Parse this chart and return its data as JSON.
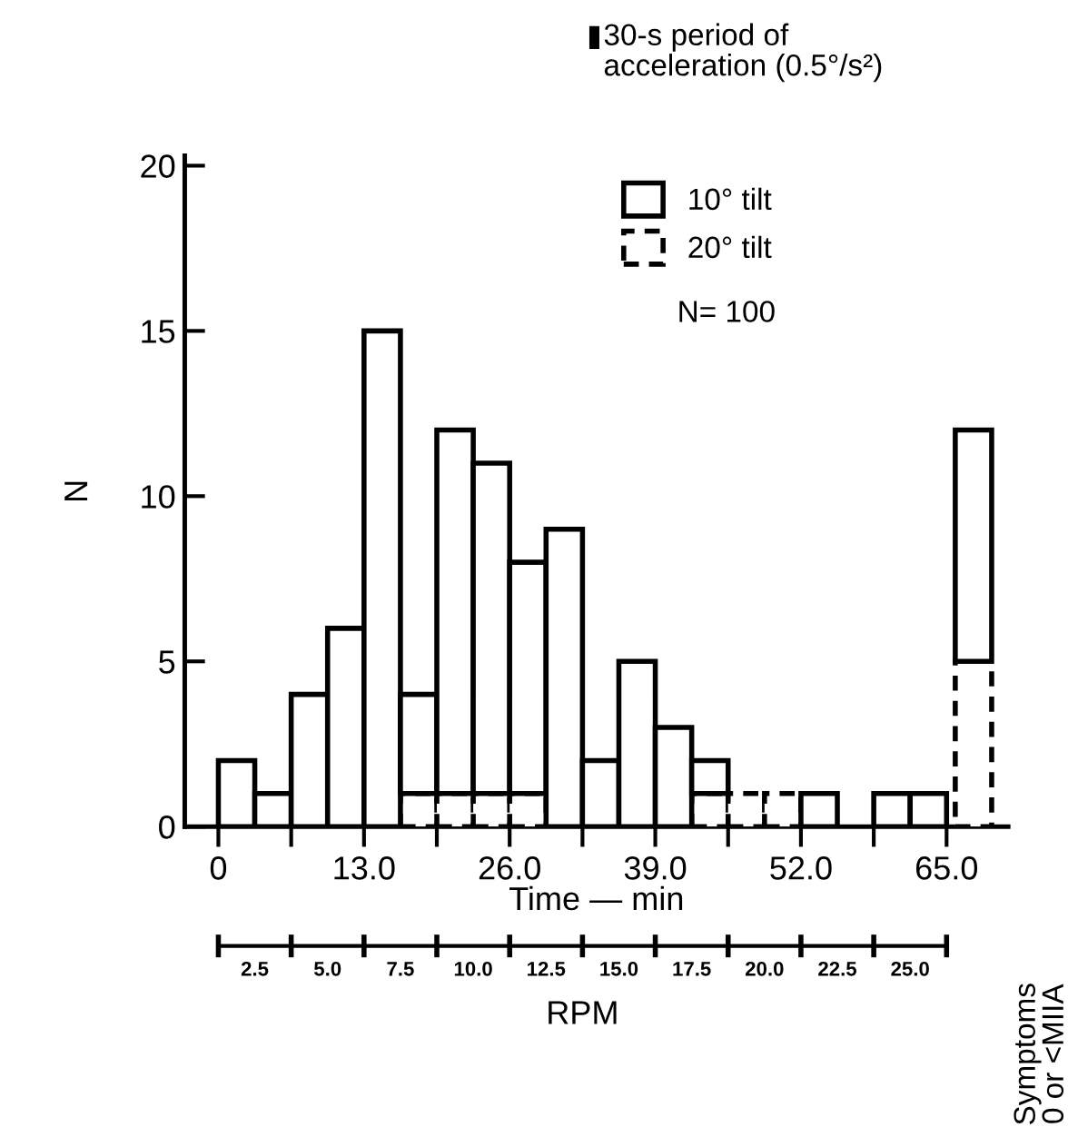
{
  "chart_data": {
    "type": "bar",
    "x": [
      1.625,
      4.875,
      8.125,
      11.375,
      14.625,
      17.875,
      21.125,
      24.375,
      27.625,
      30.875,
      34.125,
      37.375,
      40.625,
      43.875,
      47.125,
      50.375,
      53.625,
      56.875,
      60.125,
      63.375,
      67.4
    ],
    "series": [
      {
        "name": "20° tilt",
        "color": "#000000",
        "line_style": "dashed",
        "values": [
          0,
          0,
          0,
          0,
          0,
          1,
          1,
          1,
          1,
          0,
          0,
          0,
          0,
          1,
          1,
          1,
          0,
          0,
          0,
          0,
          5
        ]
      },
      {
        "name": "10° tilt",
        "color": "#000000",
        "line_style": "solid",
        "values": [
          2,
          1,
          4,
          6,
          15,
          3,
          11,
          10,
          7,
          9,
          2,
          5,
          3,
          1,
          0,
          0,
          1,
          0,
          1,
          1,
          7
        ]
      }
    ],
    "stacked": true,
    "xlabel": "Time — min",
    "ylabel": "N",
    "xlim": [
      -3,
      70.5
    ],
    "ylim": [
      0,
      20.3
    ],
    "xticks": [
      0,
      {
        "value": 6.5,
        "label": null
      },
      {
        "value": 13.0,
        "label": "13.0"
      },
      {
        "value": 19.5,
        "label": null
      },
      {
        "value": 26.0,
        "label": "26.0"
      },
      {
        "value": 32.5,
        "label": null
      },
      {
        "value": 39.0,
        "label": "39.0"
      },
      {
        "value": 45.5,
        "label": null
      },
      {
        "value": 52.0,
        "label": "52.0"
      },
      {
        "value": 58.5,
        "label": null
      },
      {
        "value": 65.0,
        "label": "65.0"
      }
    ],
    "yticks": [
      0,
      5,
      10,
      15,
      20
    ],
    "x2label": "RPM",
    "x2lim": [
      1.25,
      26.25
    ],
    "x2ticks": [
      {
        "value": 1.25,
        "label": null
      },
      {
        "value": 2.5,
        "label": "2.5"
      },
      {
        "value": 3.75,
        "label": null
      },
      {
        "value": 5.0,
        "label": "5.0"
      },
      {
        "value": 6.25,
        "label": null
      },
      {
        "value": 7.5,
        "label": "7.5"
      },
      {
        "value": 8.75,
        "label": null
      },
      {
        "value": 10.0,
        "label": "10.0"
      },
      {
        "value": 11.25,
        "label": null
      },
      {
        "value": 12.5,
        "label": "12.5"
      },
      {
        "value": 13.75,
        "label": null
      },
      {
        "value": 15.0,
        "label": "15.0"
      },
      {
        "value": 16.25,
        "label": null
      },
      {
        "value": 17.5,
        "label": "17.5"
      },
      {
        "value": 18.75,
        "label": null
      },
      {
        "value": 20.0,
        "label": "20.0"
      },
      {
        "value": 21.25,
        "label": null
      },
      {
        "value": 22.5,
        "label": "22.5"
      },
      {
        "value": 23.75,
        "label": null
      },
      {
        "value": 25.0,
        "label": "25.0"
      },
      {
        "value": 26.25,
        "label": null
      }
    ],
    "legend": "top",
    "grid": false,
    "annotations": [
      "30-s period of\nacceleration (0.5°/s²)",
      "N= 100",
      "Symptoms\n0 or <MIIA"
    ]
  }
}
